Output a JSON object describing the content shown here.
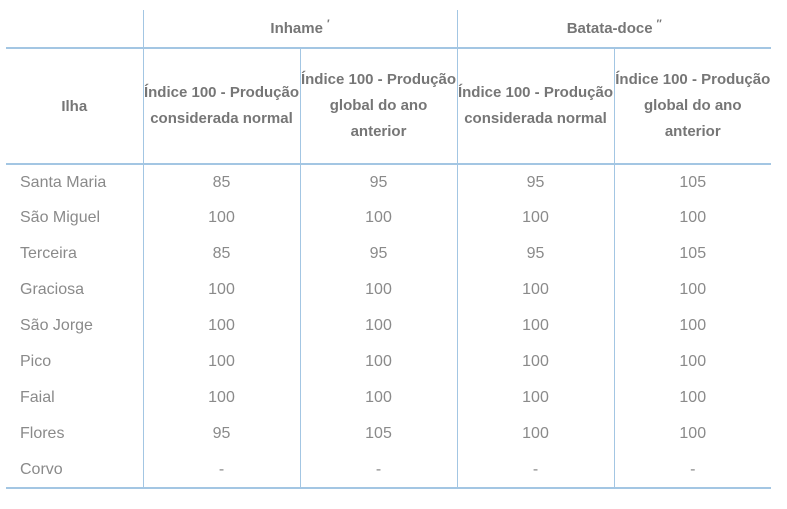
{
  "table": {
    "island_header": "Ilha",
    "groups": [
      {
        "label": "Inhame",
        "marker": "′"
      },
      {
        "label": "Batata-doce",
        "marker": "′′"
      }
    ],
    "subheaders": {
      "considered_normal": "Índice 100 - Produção considerada normal",
      "global_previous_year": "Índice 100 - Produção global do ano anterior"
    },
    "rows": [
      {
        "island": "Santa Maria",
        "values": [
          "85",
          "95",
          "95",
          "105"
        ]
      },
      {
        "island": "São Miguel",
        "values": [
          "100",
          "100",
          "100",
          "100"
        ]
      },
      {
        "island": "Terceira",
        "values": [
          "85",
          "95",
          "95",
          "105"
        ]
      },
      {
        "island": "Graciosa",
        "values": [
          "100",
          "100",
          "100",
          "100"
        ]
      },
      {
        "island": "São Jorge",
        "values": [
          "100",
          "100",
          "100",
          "100"
        ]
      },
      {
        "island": "Pico",
        "values": [
          "100",
          "100",
          "100",
          "100"
        ]
      },
      {
        "island": "Faial",
        "values": [
          "100",
          "100",
          "100",
          "100"
        ]
      },
      {
        "island": "Flores",
        "values": [
          "95",
          "105",
          "100",
          "100"
        ]
      },
      {
        "island": "Corvo",
        "values": [
          "-",
          "-",
          "-",
          "-"
        ]
      }
    ],
    "colors": {
      "border": "#a3c6e3",
      "header_text": "#767676",
      "data_text": "#8a8a8a"
    }
  }
}
